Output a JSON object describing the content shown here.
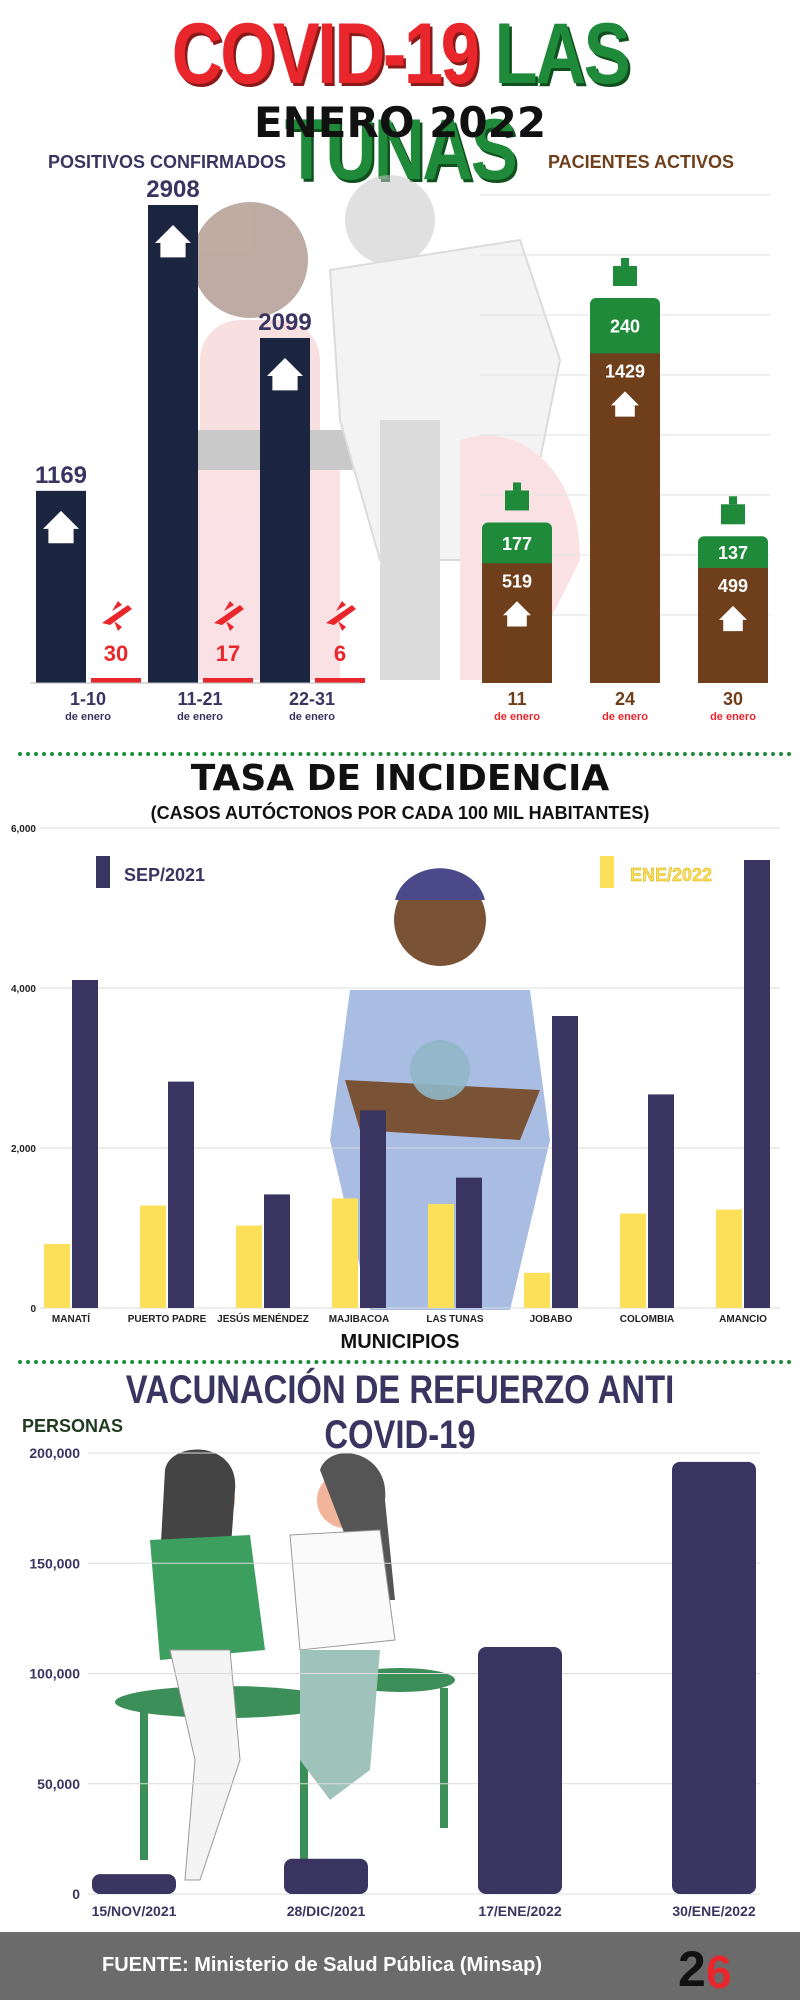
{
  "header": {
    "title_part1": "COVID-19",
    "title_part2": "LAS TUNAS",
    "subtitle": "ENERO 2022"
  },
  "section1": {
    "left_label": "POSITIVOS CONFIRMADOS",
    "right_label": "PACIENTES ACTIVOS"
  },
  "section2": {
    "title": "TASA DE INCIDENCIA",
    "subtitle": "(CASOS AUTÓCTONOS POR CADA 100 MIL HABITANTES)",
    "xlabel": "MUNICIPIOS"
  },
  "section3": {
    "title": "VACUNACIÓN DE REFUERZO ANTI COVID-19",
    "ylabel": "PERSONAS"
  },
  "footer": {
    "source": "FUENTE: Ministerio de Salud Pública (Minsap)",
    "logo": "26"
  },
  "colors": {
    "navy": "#1b2540",
    "red": "#e8262b",
    "green": "#1f8a3a",
    "brown": "#6e3f1a",
    "purple": "#3a3560",
    "yellow": "#fde05a"
  },
  "chart_data": [
    {
      "type": "bar",
      "categories": [
        "1-10",
        "11-21",
        "22-31"
      ],
      "category_sublabels": [
        "de enero",
        "de enero",
        "de enero"
      ],
      "series": [
        {
          "icon": "house-icon",
          "values": [
            1169,
            2908,
            2099
          ]
        },
        {
          "icon": "plane-icon",
          "values": [
            30,
            17,
            6
          ]
        }
      ],
      "ylim": [
        0,
        3000
      ]
    },
    {
      "type": "bar",
      "stacked": true,
      "categories": [
        "11",
        "24",
        "30"
      ],
      "category_sublabels": [
        "de enero",
        "de enero",
        "de enero"
      ],
      "series": [
        {
          "icon": "house-icon",
          "values": [
            519,
            1429,
            499
          ]
        },
        {
          "icon": "hospital-icon",
          "values": [
            177,
            240,
            137
          ]
        }
      ],
      "ylim": [
        0,
        1800
      ]
    },
    {
      "type": "bar",
      "title": "TASA DE INCIDENCIA",
      "categories": [
        "MANATÍ",
        "PUERTO PADRE",
        "JESÚS MENÉNDEZ",
        "MAJIBACOA",
        "LAS TUNAS",
        "JOBABO",
        "COLOMBIA",
        "AMANCIO"
      ],
      "series": [
        {
          "name": "ENE/2022",
          "values": [
            800,
            1280,
            1030,
            1370,
            1300,
            440,
            1180,
            1230
          ]
        },
        {
          "name": "SEP/2021",
          "values": [
            4100,
            2830,
            1420,
            2470,
            1630,
            3650,
            2670,
            5600
          ]
        }
      ],
      "yticks": [
        "0",
        "2,000",
        "4,000",
        "6,000"
      ],
      "ylim": [
        0,
        6000
      ],
      "xlabel": "MUNICIPIOS",
      "legend": "top",
      "grid": true
    },
    {
      "type": "bar",
      "title": "VACUNACIÓN DE REFUERZO ANTI COVID-19",
      "categories": [
        "15/NOV/2021",
        "28/DIC/2021",
        "17/ENE/2022",
        "30/ENE/2022"
      ],
      "values": [
        9000,
        16000,
        112000,
        196000
      ],
      "yticks": [
        "0",
        "50,000",
        "100,000",
        "150,000",
        "200,000"
      ],
      "ylim": [
        0,
        200000
      ],
      "ylabel": "PERSONAS",
      "grid": true
    }
  ]
}
